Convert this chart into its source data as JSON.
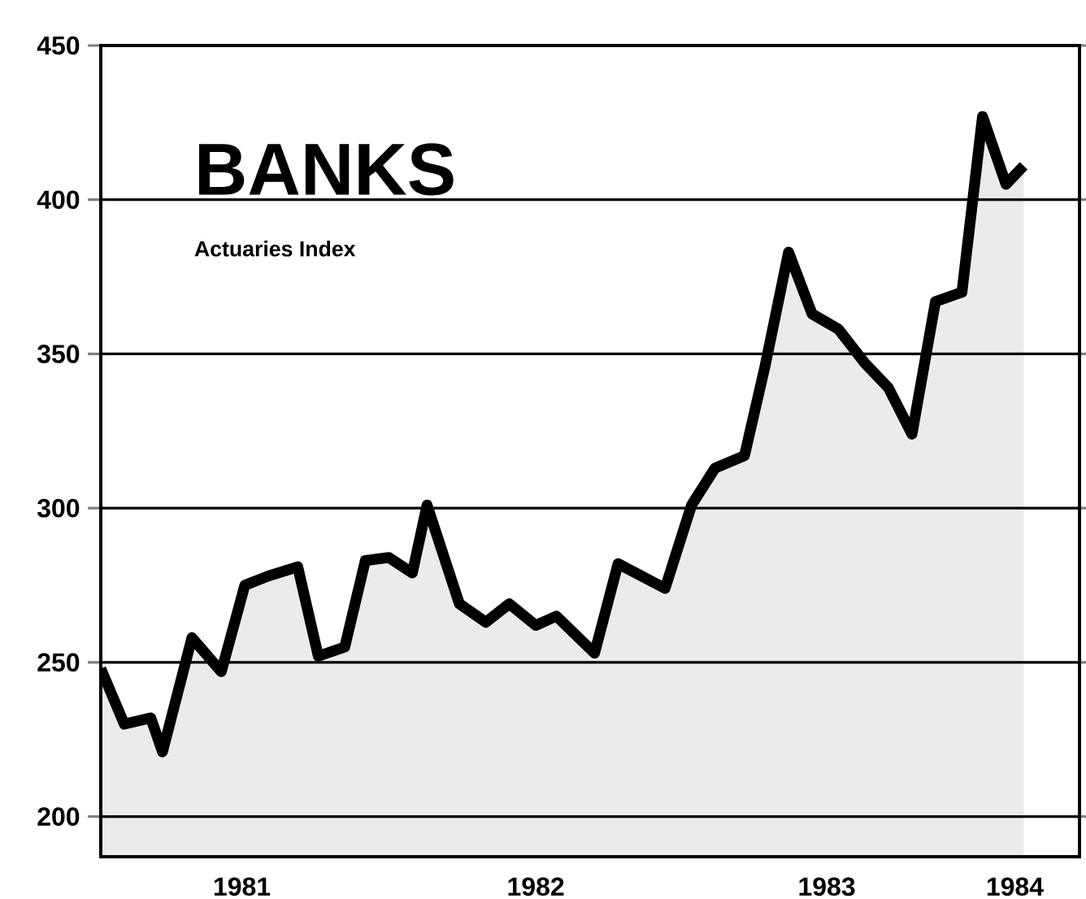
{
  "chart_data": {
    "type": "area",
    "title": "BANKS",
    "subtitle": "Actuaries Index",
    "x": [
      1981.02,
      1981.1,
      1981.19,
      1981.23,
      1981.33,
      1981.43,
      1981.51,
      1981.59,
      1981.69,
      1981.76,
      1981.85,
      1981.92,
      1982.0,
      1982.08,
      1982.13,
      1982.24,
      1982.33,
      1982.41,
      1982.5,
      1982.57,
      1982.7,
      1982.78,
      1982.94,
      1983.03,
      1983.11,
      1983.21,
      1983.28,
      1983.36,
      1983.44,
      1983.53,
      1983.62,
      1983.7,
      1983.78,
      1983.86,
      1983.95,
      1984.02,
      1984.1,
      1984.16
    ],
    "values": [
      248,
      230,
      232,
      221,
      258,
      247,
      275,
      278,
      281,
      252,
      255,
      283,
      284,
      279,
      301,
      269,
      263,
      269,
      262,
      265,
      253,
      282,
      274,
      301,
      313,
      317,
      346,
      383,
      363,
      358,
      347,
      339,
      324,
      367,
      370,
      427,
      405,
      411
    ],
    "color": "#000000",
    "xlim": [
      1981.02,
      1984.35
    ],
    "ylim": [
      187,
      450
    ],
    "xticks": [
      {
        "value": 1981.5,
        "label": "1981"
      },
      {
        "value": 1982.5,
        "label": "1982"
      },
      {
        "value": 1983.49,
        "label": "1983"
      },
      {
        "value": 1984.13,
        "label": "1984"
      }
    ],
    "yticks": [
      200,
      250,
      300,
      350,
      400,
      450
    ],
    "grid": "y"
  }
}
